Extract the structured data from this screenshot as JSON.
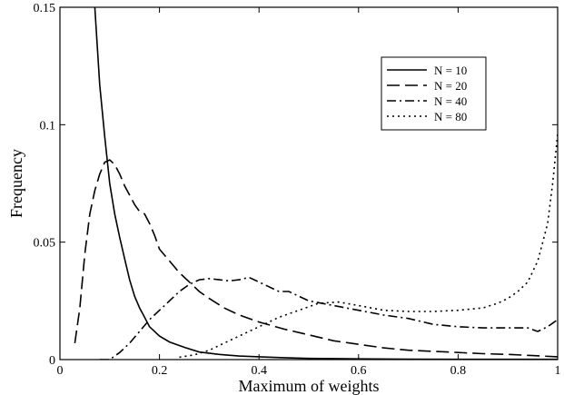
{
  "chart_data": {
    "type": "line",
    "title": "",
    "xlabel": "Maximum of weights",
    "ylabel": "Frequency",
    "xlim": [
      0,
      1
    ],
    "ylim": [
      0,
      0.15
    ],
    "x_ticks": [
      0,
      0.2,
      0.4,
      0.6,
      0.8,
      1
    ],
    "x_tick_labels": [
      "0",
      "0.2",
      "0.4",
      "0.6",
      "0.8",
      "1"
    ],
    "y_ticks": [
      0,
      0.05,
      0.1,
      0.15
    ],
    "y_tick_labels": [
      "0",
      "0.05",
      "0.1",
      "0.15"
    ],
    "grid": false,
    "legend_position": "top-right",
    "series": [
      {
        "name": "N = 10",
        "style": "solid",
        "points": [
          [
            0.07,
            0.15
          ],
          [
            0.08,
            0.117
          ],
          [
            0.09,
            0.095
          ],
          [
            0.1,
            0.075
          ],
          [
            0.11,
            0.062
          ],
          [
            0.12,
            0.052
          ],
          [
            0.13,
            0.043
          ],
          [
            0.14,
            0.034
          ],
          [
            0.15,
            0.027
          ],
          [
            0.16,
            0.022
          ],
          [
            0.17,
            0.018
          ],
          [
            0.18,
            0.014
          ],
          [
            0.2,
            0.01
          ],
          [
            0.22,
            0.0075
          ],
          [
            0.25,
            0.0052
          ],
          [
            0.28,
            0.0032
          ],
          [
            0.32,
            0.0022
          ],
          [
            0.36,
            0.0015
          ],
          [
            0.4,
            0.0012
          ],
          [
            0.45,
            0.0008
          ],
          [
            0.5,
            0.0005
          ],
          [
            0.6,
            0.0003
          ],
          [
            0.7,
            0.0002
          ],
          [
            0.8,
            0.0001
          ],
          [
            0.9,
            0.0001
          ],
          [
            1.0,
            0.0001
          ]
        ]
      },
      {
        "name": "N = 20",
        "style": "dashed",
        "points": [
          [
            0.03,
            0.007
          ],
          [
            0.04,
            0.022
          ],
          [
            0.05,
            0.045
          ],
          [
            0.06,
            0.062
          ],
          [
            0.07,
            0.072
          ],
          [
            0.08,
            0.079
          ],
          [
            0.09,
            0.084
          ],
          [
            0.1,
            0.085
          ],
          [
            0.11,
            0.083
          ],
          [
            0.12,
            0.079
          ],
          [
            0.13,
            0.074
          ],
          [
            0.14,
            0.07
          ],
          [
            0.15,
            0.066
          ],
          [
            0.16,
            0.063
          ],
          [
            0.17,
            0.062
          ],
          [
            0.18,
            0.058
          ],
          [
            0.19,
            0.053
          ],
          [
            0.2,
            0.047
          ],
          [
            0.22,
            0.042
          ],
          [
            0.24,
            0.037
          ],
          [
            0.26,
            0.033
          ],
          [
            0.28,
            0.029
          ],
          [
            0.3,
            0.026
          ],
          [
            0.33,
            0.022
          ],
          [
            0.36,
            0.019
          ],
          [
            0.4,
            0.016
          ],
          [
            0.45,
            0.013
          ],
          [
            0.5,
            0.0105
          ],
          [
            0.55,
            0.008
          ],
          [
            0.6,
            0.0065
          ],
          [
            0.65,
            0.005
          ],
          [
            0.7,
            0.004
          ],
          [
            0.75,
            0.0035
          ],
          [
            0.8,
            0.003
          ],
          [
            0.85,
            0.0025
          ],
          [
            0.9,
            0.0022
          ],
          [
            0.95,
            0.0017
          ],
          [
            1.0,
            0.0012
          ]
        ]
      },
      {
        "name": "N = 40",
        "style": "dashdot",
        "points": [
          [
            0.08,
            0.0
          ],
          [
            0.1,
            0.0
          ],
          [
            0.12,
            0.003
          ],
          [
            0.14,
            0.007
          ],
          [
            0.16,
            0.012
          ],
          [
            0.18,
            0.017
          ],
          [
            0.2,
            0.021
          ],
          [
            0.22,
            0.025
          ],
          [
            0.24,
            0.029
          ],
          [
            0.26,
            0.032
          ],
          [
            0.28,
            0.034
          ],
          [
            0.3,
            0.0345
          ],
          [
            0.32,
            0.034
          ],
          [
            0.34,
            0.0335
          ],
          [
            0.36,
            0.034
          ],
          [
            0.38,
            0.035
          ],
          [
            0.4,
            0.033
          ],
          [
            0.42,
            0.031
          ],
          [
            0.44,
            0.029
          ],
          [
            0.46,
            0.029
          ],
          [
            0.48,
            0.027
          ],
          [
            0.5,
            0.025
          ],
          [
            0.55,
            0.023
          ],
          [
            0.6,
            0.021
          ],
          [
            0.65,
            0.019
          ],
          [
            0.7,
            0.0175
          ],
          [
            0.75,
            0.015
          ],
          [
            0.8,
            0.014
          ],
          [
            0.85,
            0.0135
          ],
          [
            0.9,
            0.0135
          ],
          [
            0.94,
            0.0135
          ],
          [
            0.96,
            0.012
          ],
          [
            0.98,
            0.014
          ],
          [
            1.0,
            0.017
          ]
        ]
      },
      {
        "name": "N = 80",
        "style": "dotted",
        "points": [
          [
            0.24,
            0.001
          ],
          [
            0.27,
            0.002
          ],
          [
            0.3,
            0.004
          ],
          [
            0.33,
            0.007
          ],
          [
            0.36,
            0.01
          ],
          [
            0.4,
            0.014
          ],
          [
            0.44,
            0.018
          ],
          [
            0.48,
            0.021
          ],
          [
            0.52,
            0.024
          ],
          [
            0.56,
            0.0245
          ],
          [
            0.6,
            0.023
          ],
          [
            0.65,
            0.021
          ],
          [
            0.7,
            0.0205
          ],
          [
            0.75,
            0.0205
          ],
          [
            0.8,
            0.021
          ],
          [
            0.85,
            0.022
          ],
          [
            0.88,
            0.024
          ],
          [
            0.9,
            0.026
          ],
          [
            0.92,
            0.029
          ],
          [
            0.94,
            0.033
          ],
          [
            0.96,
            0.042
          ],
          [
            0.97,
            0.05
          ],
          [
            0.98,
            0.058
          ],
          [
            0.99,
            0.075
          ],
          [
            1.0,
            0.096
          ]
        ]
      }
    ]
  }
}
